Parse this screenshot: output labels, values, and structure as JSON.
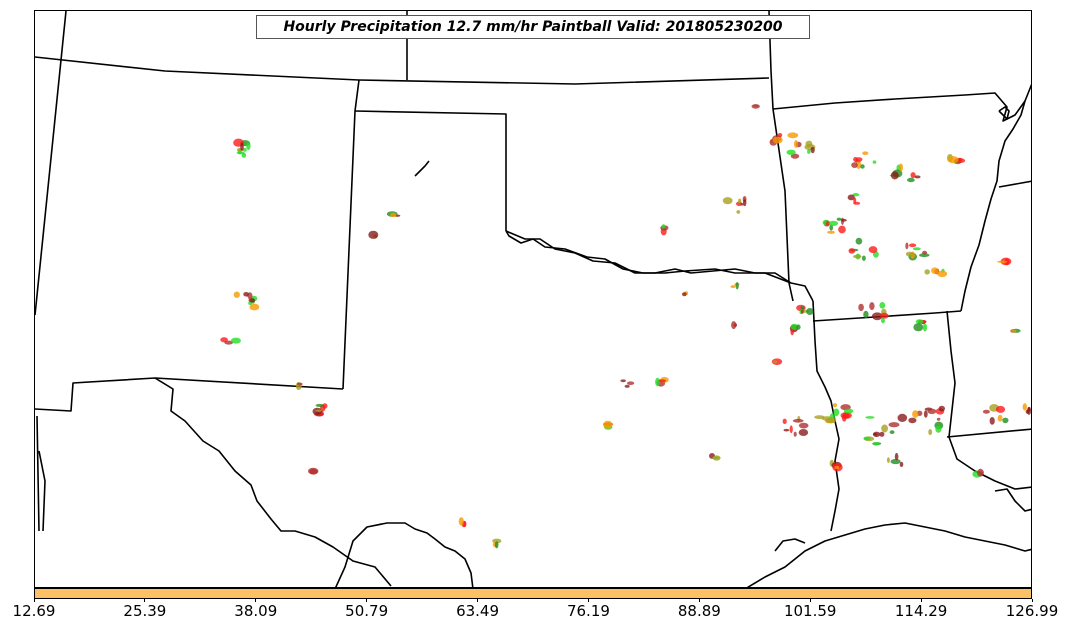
{
  "title": "Hourly Precipitation 12.7 mm/hr Paintball Valid: 201805230200",
  "colorbar": {
    "fill_color": "#fcc166",
    "tick_labels": [
      "12.69",
      "25.39",
      "38.09",
      "50.79",
      "63.49",
      "76.19",
      "88.89",
      "101.59",
      "114.29",
      "126.99"
    ]
  },
  "map": {
    "boundary_color": "#000000",
    "member_colors": [
      "#ff1a1a",
      "#8b1c1c",
      "#1f8f1f",
      "#22dd22",
      "#f59a00",
      "#a8a020",
      "#b03030"
    ]
  }
}
